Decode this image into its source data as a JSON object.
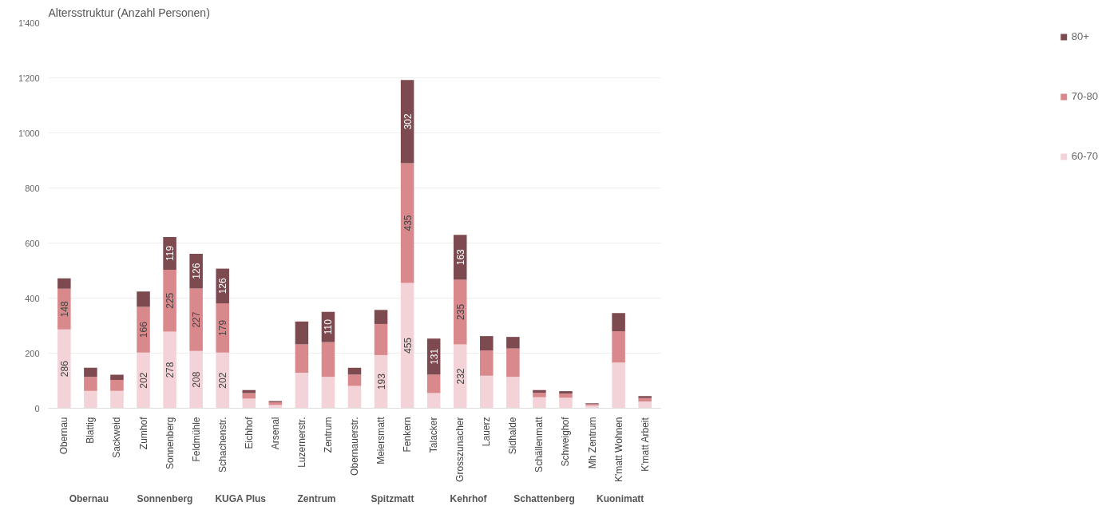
{
  "chart_data": {
    "type": "bar",
    "stacked": true,
    "title": "Altersstruktur (Anzahl Personen)",
    "categories": [
      "Obernau",
      "Blattig",
      "Sackweid",
      "Zumhof",
      "Sonnenberg",
      "Feldmühle",
      "Schachenstr.",
      "Eichhof",
      "Arsenal",
      "Luzernerstr.",
      "Zentrum",
      "Obernauerstr.",
      "Meiersmatt",
      "Fenkern",
      "Talacker",
      "Grosszunacher",
      "Lauerz",
      "Sidhalde",
      "Schällenmatt",
      "Schweighof",
      "Mh Zentrum",
      "K'matt Wohnen",
      "K'matt Arbeit"
    ],
    "series": [
      {
        "name": "60-70",
        "color": "#f3d3d7",
        "values": [
          286,
          63,
          63,
          202,
          278,
          208,
          202,
          35,
          12,
          129,
          114,
          81,
          193,
          455,
          55,
          232,
          118,
          114,
          40,
          38,
          10,
          166,
          25
        ],
        "value_labels": [
          "286",
          null,
          null,
          "202",
          "278",
          "208",
          "202",
          null,
          null,
          null,
          null,
          null,
          "193",
          "455",
          null,
          "232",
          null,
          null,
          null,
          null,
          null,
          null,
          null
        ]
      },
      {
        "name": "70-80",
        "color": "#d9888c",
        "values": [
          148,
          51,
          40,
          166,
          225,
          227,
          179,
          20,
          10,
          103,
          126,
          41,
          113,
          435,
          67,
          235,
          92,
          103,
          16,
          15,
          5,
          114,
          12
        ],
        "value_labels": [
          "148",
          null,
          null,
          "166",
          "225",
          "227",
          "179",
          null,
          null,
          null,
          null,
          null,
          null,
          "435",
          null,
          "235",
          null,
          null,
          null,
          null,
          null,
          null,
          null
        ]
      },
      {
        "name": "80+",
        "color": "#7d4a50",
        "values": [
          38,
          33,
          19,
          56,
          119,
          126,
          126,
          11,
          4,
          83,
          110,
          25,
          51,
          302,
          131,
          163,
          52,
          42,
          10,
          9,
          3,
          66,
          7
        ],
        "value_labels": [
          null,
          null,
          null,
          null,
          "119",
          "126",
          "126",
          null,
          null,
          null,
          "110",
          null,
          null,
          "302",
          "131",
          "163",
          null,
          null,
          null,
          null,
          null,
          null,
          null
        ]
      }
    ],
    "annotations": [
      "Obernau",
      "Sonnenberg",
      "KUGA Plus",
      "Zentrum",
      "Spitzmatt",
      "Kehrhof",
      "Schattenberg",
      "Kuonimatt"
    ],
    "ylim": [
      0,
      1400
    ],
    "yticks": [
      0,
      {
        "value": 200,
        "label": "200"
      },
      400,
      600,
      800,
      {
        "value": 1000,
        "label": "1'000"
      },
      {
        "value": 1200,
        "label": "1'200"
      },
      {
        "value": 1400,
        "label": "1'400"
      }
    ],
    "grid": "y",
    "legend": "right"
  }
}
